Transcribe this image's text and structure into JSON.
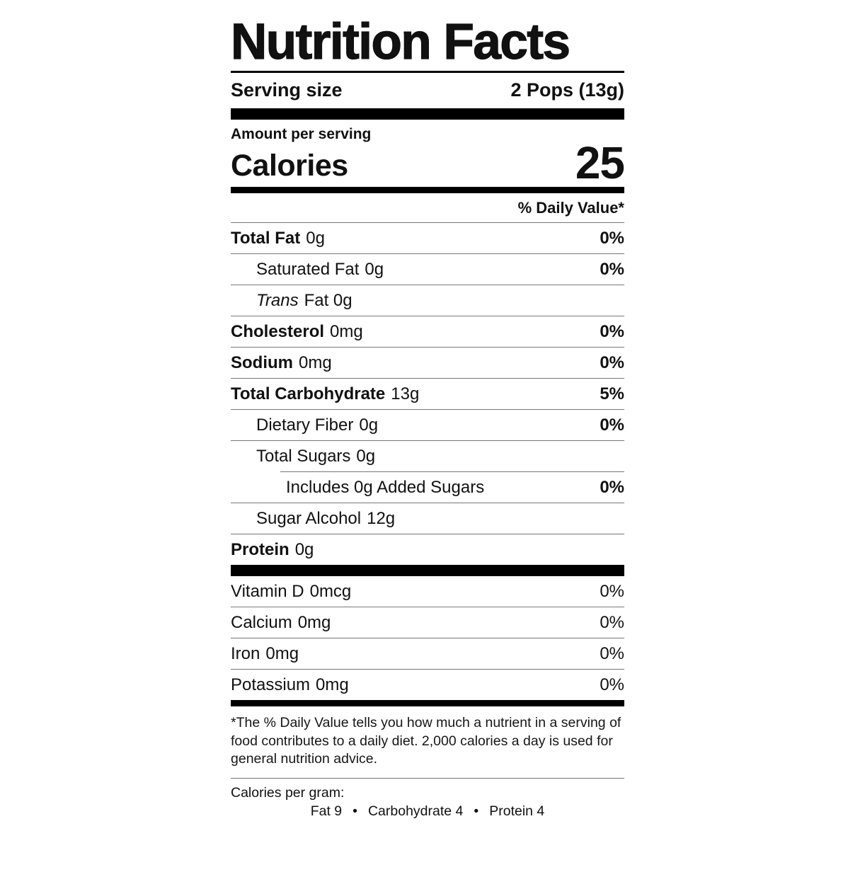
{
  "label": {
    "title": "Nutrition Facts",
    "serving_size_label": "Serving size",
    "serving_size_value": "2 Pops (13g)",
    "amount_per_serving": "Amount per serving",
    "calories_label": "Calories",
    "calories_value": "25",
    "daily_value_header": "% Daily Value*",
    "nutrients": [
      {
        "name": "Total Fat",
        "amount": "0g",
        "dv": "0%"
      },
      {
        "name": "Saturated Fat",
        "amount": "0g",
        "dv": "0%"
      },
      {
        "name": "Trans",
        "amount": "Fat 0g",
        "dv": ""
      },
      {
        "name": "Cholesterol",
        "amount": "0mg",
        "dv": "0%"
      },
      {
        "name": "Sodium",
        "amount": "0mg",
        "dv": "0%"
      },
      {
        "name": "Total Carbohydrate",
        "amount": "13g",
        "dv": "5%"
      },
      {
        "name": "Dietary Fiber",
        "amount": "0g",
        "dv": "0%"
      },
      {
        "name": "Total Sugars",
        "amount": "0g",
        "dv": ""
      },
      {
        "name": "Includes 0g Added Sugars",
        "amount": "",
        "dv": "0%"
      },
      {
        "name": "Sugar Alcohol",
        "amount": "12g",
        "dv": ""
      },
      {
        "name": "Protein",
        "amount": "0g",
        "dv": ""
      }
    ],
    "vitamins": [
      {
        "name": "Vitamin D",
        "amount": "0mcg",
        "dv": "0%"
      },
      {
        "name": "Calcium",
        "amount": "0mg",
        "dv": "0%"
      },
      {
        "name": "Iron",
        "amount": "0mg",
        "dv": "0%"
      },
      {
        "name": "Potassium",
        "amount": "0mg",
        "dv": "0%"
      }
    ],
    "footnote": "*The % Daily Value tells you how much a nutrient in a serving of food contributes to a daily diet. 2,000 calories a day is used for general nutrition advice.",
    "calories_per_gram_label": "Calories per gram:",
    "cpg_items": [
      "Fat 9",
      "Carbohydrate 4",
      "Protein 4"
    ],
    "bullet": "•"
  }
}
